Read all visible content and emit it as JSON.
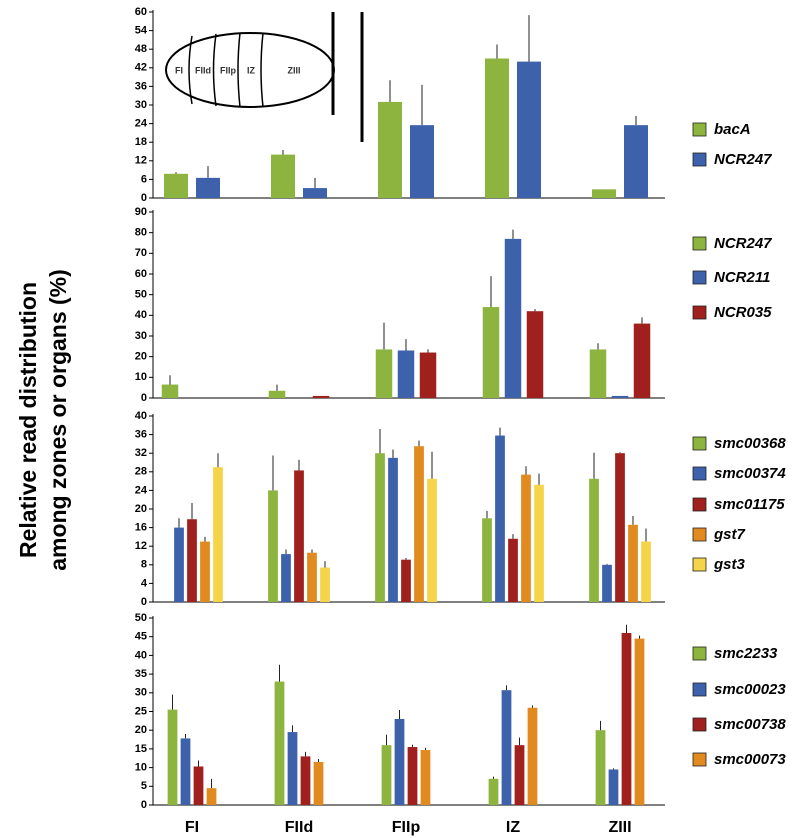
{
  "ylabel": [
    "Relative read distribution",
    "among zones or organs (%)"
  ],
  "categories": [
    "FI",
    "FIId",
    "FIIp",
    "IZ",
    "ZIII"
  ],
  "inset_labels": [
    "FI",
    "FIId",
    "FIIp",
    "IZ",
    "ZIII"
  ],
  "chart_data": [
    {
      "type": "bar",
      "ylim": [
        0,
        60
      ],
      "yticks": [
        0,
        6,
        12,
        18,
        24,
        30,
        36,
        42,
        48,
        54,
        60
      ],
      "series": [
        {
          "name": "bacA",
          "color": "#8db43e",
          "values": [
            7.8,
            14,
            31,
            45,
            2.8
          ],
          "error": [
            0.5,
            1.5,
            7,
            4.5,
            0
          ]
        },
        {
          "name": "NCR247",
          "color": "#3d62ab",
          "values": [
            6.5,
            3.2,
            23.5,
            44,
            23.5
          ],
          "error": [
            3.8,
            3.3,
            13,
            15,
            3
          ]
        }
      ]
    },
    {
      "type": "bar",
      "ylim": [
        0,
        90
      ],
      "yticks": [
        0,
        10,
        20,
        30,
        40,
        50,
        60,
        70,
        80,
        90
      ],
      "series": [
        {
          "name": "NCR247",
          "color": "#8db43e",
          "values": [
            6.5,
            3.5,
            23.5,
            44,
            23.5
          ],
          "error": [
            4.5,
            3,
            13,
            15,
            3
          ]
        },
        {
          "name": "NCR211",
          "color": "#3d62ab",
          "values": [
            0,
            0,
            23,
            77,
            1
          ],
          "error": [
            0,
            0,
            5.5,
            4.5,
            0
          ]
        },
        {
          "name": "NCR035",
          "color": "#a0201e",
          "values": [
            0,
            1,
            22,
            42,
            36
          ],
          "error": [
            0,
            0,
            1.5,
            1,
            3
          ]
        }
      ]
    },
    {
      "type": "bar",
      "ylim": [
        0,
        40
      ],
      "yticks": [
        0,
        4,
        8,
        12,
        16,
        20,
        24,
        28,
        32,
        36,
        40
      ],
      "series": [
        {
          "name": "smc00368",
          "color": "#8db43e",
          "values": [
            0,
            24,
            32,
            18,
            26.5
          ],
          "error": [
            0,
            7.5,
            5.2,
            1.6,
            5.6
          ]
        },
        {
          "name": "smc00374",
          "color": "#3d62ab",
          "values": [
            16,
            10.3,
            31,
            35.8,
            8
          ],
          "error": [
            2,
            1,
            1.8,
            1.7,
            0.2
          ]
        },
        {
          "name": "smc01175",
          "color": "#a0201e",
          "values": [
            17.8,
            28.3,
            9.1,
            13.6,
            32
          ],
          "error": [
            3.5,
            2.3,
            0.4,
            1,
            0.2
          ]
        },
        {
          "name": "gst7",
          "color": "#e08a20",
          "values": [
            13,
            10.6,
            33.5,
            27.4,
            16.6
          ],
          "error": [
            1,
            0.7,
            1.2,
            1.8,
            1.9
          ]
        },
        {
          "name": "gst3",
          "color": "#f5d44a",
          "values": [
            29,
            7.4,
            26.5,
            25.2,
            13
          ],
          "error": [
            3,
            1.4,
            5.8,
            2.4,
            2.8
          ]
        }
      ]
    },
    {
      "type": "bar",
      "ylim": [
        0,
        50
      ],
      "yticks": [
        0,
        5,
        10,
        15,
        20,
        25,
        30,
        35,
        40,
        45,
        50
      ],
      "series": [
        {
          "name": "smc2233",
          "color": "#8db43e",
          "values": [
            25.5,
            33,
            16,
            7,
            20
          ],
          "error": [
            4,
            4.5,
            2.8,
            0.6,
            2.5
          ]
        },
        {
          "name": "smc00023",
          "color": "#3d62ab",
          "values": [
            17.8,
            19.5,
            23,
            30.7,
            9.5
          ],
          "error": [
            1.2,
            1.8,
            2.4,
            1.3,
            0.3
          ]
        },
        {
          "name": "smc00738",
          "color": "#a0201e",
          "values": [
            10.3,
            13,
            15.5,
            16,
            46
          ],
          "error": [
            1.6,
            1.2,
            0.6,
            2,
            2.2
          ]
        },
        {
          "name": "smc00073",
          "color": "#e08a20",
          "values": [
            4.5,
            11.5,
            14.7,
            26,
            44.5
          ],
          "error": [
            2.5,
            0.8,
            0.6,
            0.6,
            0.8
          ]
        }
      ]
    }
  ]
}
